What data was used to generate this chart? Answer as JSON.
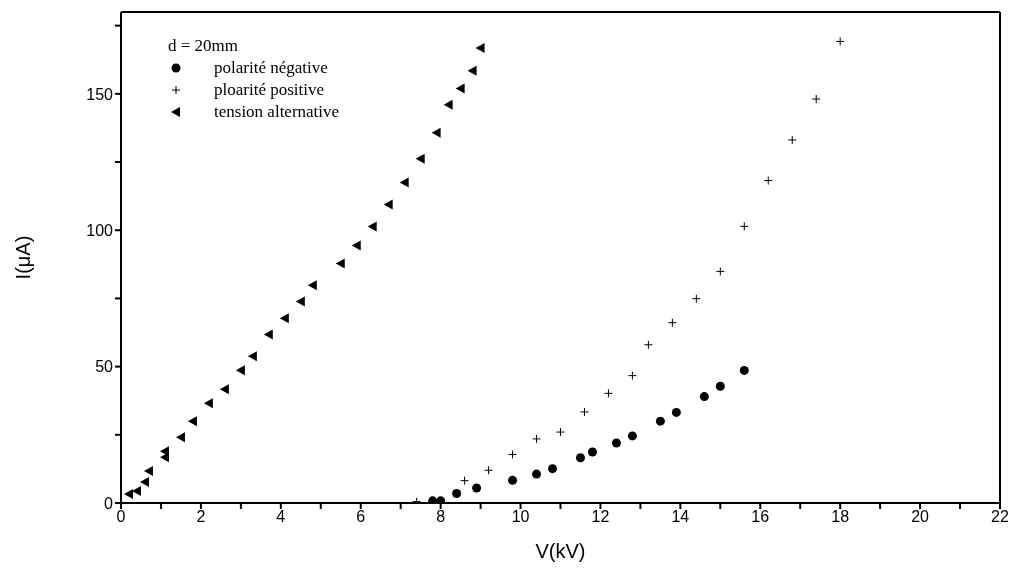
{
  "chart_data": {
    "type": "scatter",
    "xlabel": "V(kV)",
    "ylabel": "I(μA)",
    "legend_title": "d = 20mm",
    "legend": "top left",
    "xlim": [
      0,
      22
    ],
    "xticks": [
      0,
      {
        "value": 1,
        "label": null
      },
      2,
      {
        "value": 3,
        "label": null
      },
      4,
      {
        "value": 5,
        "label": null
      },
      6,
      {
        "value": 7,
        "label": null
      },
      8,
      {
        "value": 9,
        "label": null
      },
      10,
      {
        "value": 11,
        "label": null
      },
      12,
      {
        "value": 13,
        "label": null
      },
      14,
      {
        "value": 15,
        "label": null
      },
      16,
      {
        "value": 17,
        "label": null
      },
      18,
      {
        "value": 19,
        "label": null
      },
      20,
      {
        "value": 21,
        "label": null
      },
      22
    ],
    "ylim": [
      0,
      180
    ],
    "yticks": [
      0,
      {
        "value": 25,
        "label": null
      },
      50,
      {
        "value": 75,
        "label": null
      },
      100,
      {
        "value": 125,
        "label": null
      },
      150,
      {
        "value": 175,
        "label": null
      }
    ],
    "series": [
      {
        "name": "polarité négative",
        "color": "#000000",
        "marker": "circle",
        "x": [
          7.8,
          8.0,
          8.4,
          8.9,
          9.8,
          10.4,
          10.8,
          11.5,
          11.8,
          12.4,
          12.8,
          13.5,
          13.9,
          14.6,
          15.0,
          15.6
        ],
        "values": [
          0.8,
          0.8,
          3.5,
          5.5,
          8.3,
          10.6,
          12.6,
          16.6,
          18.7,
          22,
          24.6,
          30,
          33.2,
          39,
          42.8,
          48.6
        ]
      },
      {
        "name": "ploarité positive",
        "color": "#000000",
        "marker": "cross",
        "x": [
          7.4,
          8.6,
          9.2,
          9.8,
          10.4,
          11.0,
          11.6,
          12.2,
          12.8,
          13.2,
          13.8,
          14.4,
          15.0,
          15.6,
          16.2,
          16.8,
          17.4,
          18.0
        ],
        "values": [
          0.5,
          8.2,
          12,
          17.8,
          23.5,
          26,
          33.4,
          40.2,
          46.7,
          58,
          66.1,
          74.9,
          84.9,
          101.4,
          118.2,
          133.1,
          148.1,
          169.2
        ]
      },
      {
        "name": "tension alternative",
        "color": "#000000",
        "marker": "triangle",
        "x": [
          0.2,
          0.4,
          0.6,
          0.7,
          1.1,
          1.1,
          1.5,
          1.8,
          2.2,
          2.6,
          3.0,
          3.3,
          3.7,
          4.1,
          4.5,
          4.8,
          5.5,
          5.9,
          6.3,
          6.7,
          7.1,
          7.5,
          7.9,
          8.2,
          8.5,
          8.8,
          9.0
        ],
        "values": [
          3.3,
          4.4,
          7.7,
          11.7,
          16.8,
          19,
          24.1,
          30,
          36.6,
          41.7,
          48.7,
          53.8,
          61.8,
          67.7,
          73.9,
          79.8,
          87.8,
          94.4,
          101.4,
          109.4,
          117.5,
          126.2,
          135.7,
          146,
          152,
          158.5,
          166.8
        ]
      }
    ]
  }
}
